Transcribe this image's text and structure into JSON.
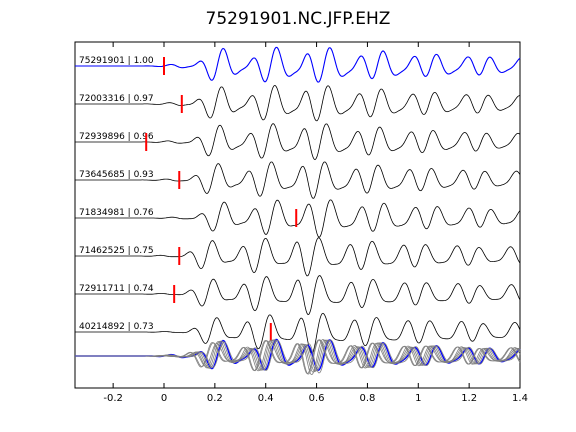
{
  "chart_data": {
    "type": "line",
    "title": "75291901.NC.JFP.EHZ",
    "xlabel": "",
    "ylabel": "",
    "xlim": [
      -0.35,
      1.4
    ],
    "xticks": [
      "-0.2",
      "0",
      "0.2",
      "0.4",
      "0.6",
      "0.8",
      "1",
      "1.2",
      "1.4"
    ],
    "xtick_values": [
      -0.2,
      0,
      0.2,
      0.4,
      0.6,
      0.8,
      1.0,
      1.2,
      1.4
    ],
    "grid": false,
    "legend": "none",
    "colors": {
      "reference": "#0000ff",
      "trace": "#000000",
      "pick": "#ff0000",
      "overlay": "#808080"
    },
    "traces": [
      {
        "id": "75291901",
        "cc": "1.00",
        "pick": 0.0,
        "shift": 0.0,
        "reference": true
      },
      {
        "id": "72003316",
        "cc": "0.97",
        "pick": 0.07,
        "shift": 0.0
      },
      {
        "id": "72939896",
        "cc": "0.96",
        "pick": -0.07,
        "shift": 0.0
      },
      {
        "id": "73645685",
        "cc": "0.93",
        "pick": 0.06,
        "shift": 0.0
      },
      {
        "id": "71834981",
        "cc": "0.76",
        "pick": 0.52,
        "shift": 0.03
      },
      {
        "id": "71462525",
        "cc": "0.75",
        "pick": 0.06,
        "shift": -0.01
      },
      {
        "id": "72911711",
        "cc": "0.74",
        "pick": 0.04,
        "shift": 0.0
      },
      {
        "id": "40214892",
        "cc": "0.73",
        "pick": 0.42,
        "shift": 0.02
      }
    ]
  }
}
